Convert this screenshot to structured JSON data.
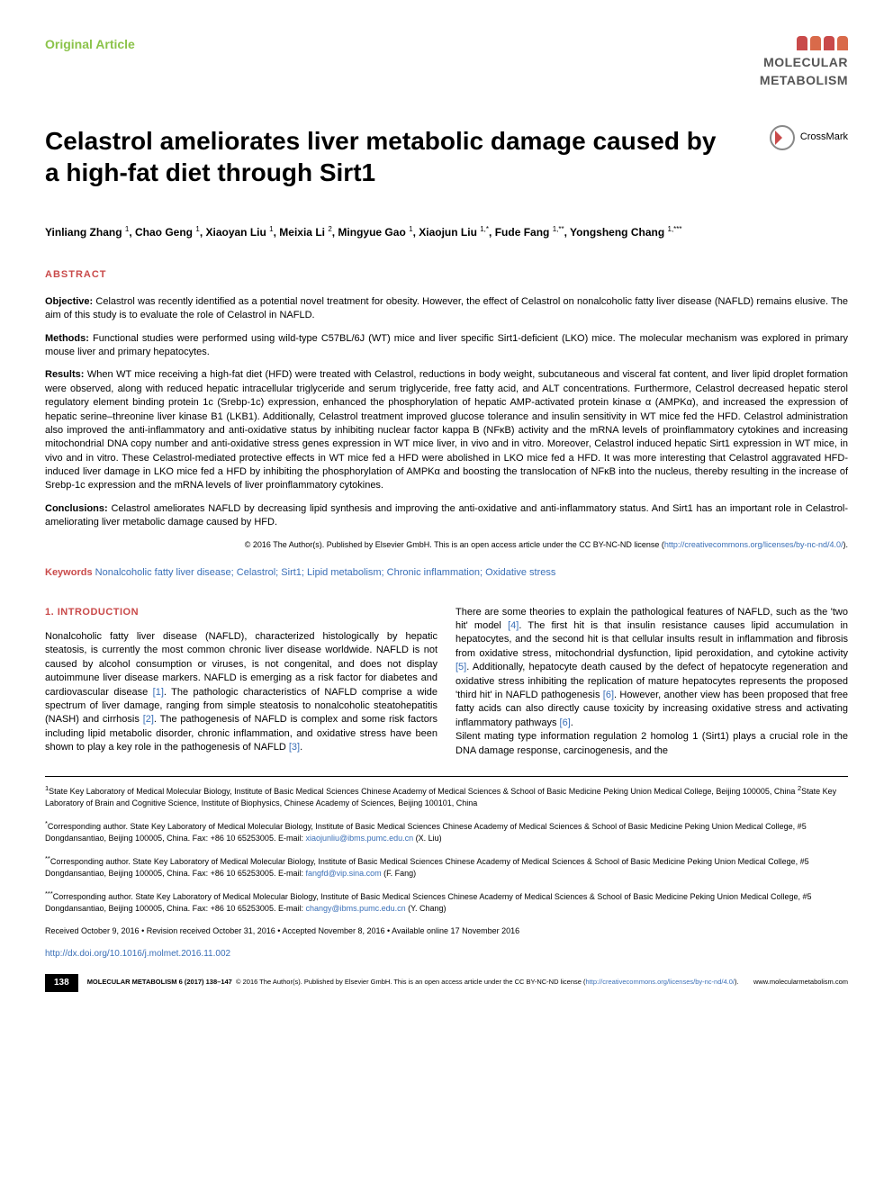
{
  "header": {
    "article_type": "Original Article",
    "journal_line1": "MOLECULAR",
    "journal_line2": "METABOLISM",
    "logo_colors": [
      "#c94a4a",
      "#d96a4a",
      "#c94a4a",
      "#d96a4a"
    ]
  },
  "title": "Celastrol ameliorates liver metabolic damage caused by a high-fat diet through Sirt1",
  "crossmark_label": "CrossMark",
  "authors_html": "Yinliang Zhang <sup>1</sup>, Chao Geng <sup>1</sup>, Xiaoyan Liu <sup>1</sup>, Meixia Li <sup>2</sup>, Mingyue Gao <sup>1</sup>, Xiaojun Liu <sup>1,*</sup>, Fude Fang <sup>1,**</sup>, Yongsheng Chang <sup>1,***</sup>",
  "abstract": {
    "label": "ABSTRACT",
    "objective_label": "Objective:",
    "objective": "Celastrol was recently identified as a potential novel treatment for obesity. However, the effect of Celastrol on nonalcoholic fatty liver disease (NAFLD) remains elusive. The aim of this study is to evaluate the role of Celastrol in NAFLD.",
    "methods_label": "Methods:",
    "methods": "Functional studies were performed using wild-type C57BL/6J (WT) mice and liver specific Sirt1-deficient (LKO) mice. The molecular mechanism was explored in primary mouse liver and primary hepatocytes.",
    "results_label": "Results:",
    "results": "When WT mice receiving a high-fat diet (HFD) were treated with Celastrol, reductions in body weight, subcutaneous and visceral fat content, and liver lipid droplet formation were observed, along with reduced hepatic intracellular triglyceride and serum triglyceride, free fatty acid, and ALT concentrations. Furthermore, Celastrol decreased hepatic sterol regulatory element binding protein 1c (Srebp-1c) expression, enhanced the phosphorylation of hepatic AMP-activated protein kinase α (AMPKα), and increased the expression of hepatic serine–threonine liver kinase B1 (LKB1). Additionally, Celastrol treatment improved glucose tolerance and insulin sensitivity in WT mice fed the HFD. Celastrol administration also improved the anti-inflammatory and anti-oxidative status by inhibiting nuclear factor kappa B (NFκB) activity and the mRNA levels of proinflammatory cytokines and increasing mitochondrial DNA copy number and anti-oxidative stress genes expression in WT mice liver, in vivo and in vitro. Moreover, Celastrol induced hepatic Sirt1 expression in WT mice, in vivo and in vitro. These Celastrol-mediated protective effects in WT mice fed a HFD were abolished in LKO mice fed a HFD. It was more interesting that Celastrol aggravated HFD-induced liver damage in LKO mice fed a HFD by inhibiting the phosphorylation of AMPKα and boosting the translocation of NFκB into the nucleus, thereby resulting in the increase of Srebp-1c expression and the mRNA levels of liver proinflammatory cytokines.",
    "conclusions_label": "Conclusions:",
    "conclusions": "Celastrol ameliorates NAFLD by decreasing lipid synthesis and improving the anti-oxidative and anti-inflammatory status. And Sirt1 has an important role in Celastrol-ameliorating liver metabolic damage caused by HFD.",
    "copyright": "© 2016 The Author(s). Published by Elsevier GmbH. This is an open access article under the CC BY-NC-ND license (",
    "copyright_link": "http://creativecommons.org/licenses/by-nc-nd/4.0/",
    "copyright_close": ")."
  },
  "keywords": {
    "label": "Keywords",
    "text": "Nonalcoholic fatty liver disease; Celastrol; Sirt1; Lipid metabolism; Chronic inflammation; Oxidative stress"
  },
  "intro": {
    "heading": "1.  INTRODUCTION",
    "col1": "Nonalcoholic fatty liver disease (NAFLD), characterized histologically by hepatic steatosis, is currently the most common chronic liver disease worldwide. NAFLD is not caused by alcohol consumption or viruses, is not congenital, and does not display autoimmune liver disease markers. NAFLD is emerging as a risk factor for diabetes and cardiovascular disease <span class=\"ref-link\">[1]</span>. The pathologic characteristics of NAFLD comprise a wide spectrum of liver damage, ranging from simple steatosis to nonalcoholic steatohepatitis (NASH) and cirrhosis <span class=\"ref-link\">[2]</span>. The pathogenesis of NAFLD is complex and some risk factors including lipid metabolic disorder, chronic inflammation, and oxidative stress have been shown to play a key role in the pathogenesis of NAFLD <span class=\"ref-link\">[3]</span>.",
    "col2": "There are some theories to explain the pathological features of NAFLD, such as the 'two hit' model <span class=\"ref-link\">[4]</span>. The first hit is that insulin resistance causes lipid accumulation in hepatocytes, and the second hit is that cellular insults result in inflammation and fibrosis from oxidative stress, mitochondrial dysfunction, lipid peroxidation, and cytokine activity <span class=\"ref-link\">[5]</span>. Additionally, hepatocyte death caused by the defect of hepatocyte regeneration and oxidative stress inhibiting the replication of mature hepatocytes represents the proposed 'third hit' in NAFLD pathogenesis <span class=\"ref-link\">[6]</span>. However, another view has been proposed that free fatty acids can also directly cause toxicity by increasing oxidative stress and activating inflammatory pathways <span class=\"ref-link\">[6]</span>.<br>Silent mating type information regulation 2 homolog 1 (Sirt1) plays a crucial role in the DNA damage response, carcinogenesis, and the"
  },
  "affiliations": "<sup>1</sup>State Key Laboratory of Medical Molecular Biology, Institute of Basic Medical Sciences Chinese Academy of Medical Sciences & School of Basic Medicine Peking Union Medical College, Beijing 100005, China <sup>2</sup>State Key Laboratory of Brain and Cognitive Science, Institute of Biophysics, Chinese Academy of Sciences, Beijing 100101, China",
  "corresponding": [
    {
      "marker": "*",
      "text": "Corresponding author. State Key Laboratory of Medical Molecular Biology, Institute of Basic Medical Sciences Chinese Academy of Medical Sciences & School of Basic Medicine Peking Union Medical College, #5 Dongdansantiao, Beijing 100005, China. Fax: +86 10 65253005. E-mail: ",
      "email": "xiaojunliu@ibms.pumc.edu.cn",
      "name": "(X. Liu)"
    },
    {
      "marker": "**",
      "text": "Corresponding author. State Key Laboratory of Medical Molecular Biology, Institute of Basic Medical Sciences Chinese Academy of Medical Sciences & School of Basic Medicine Peking Union Medical College, #5 Dongdansantiao, Beijing 100005, China. Fax: +86 10 65253005. E-mail: ",
      "email": "fangfd@vip.sina.com",
      "name": "(F. Fang)"
    },
    {
      "marker": "***",
      "text": "Corresponding author. State Key Laboratory of Medical Molecular Biology, Institute of Basic Medical Sciences Chinese Academy of Medical Sciences & School of Basic Medicine Peking Union Medical College, #5 Dongdansantiao, Beijing 100005, China. Fax: +86 10 65253005. E-mail: ",
      "email": "changy@ibms.pumc.edu.cn",
      "name": "(Y. Chang)"
    }
  ],
  "dates": "Received October 9, 2016 • Revision received October 31, 2016 • Accepted November 8, 2016 • Available online 17 November 2016",
  "doi": "http://dx.doi.org/10.1016/j.molmet.2016.11.002",
  "footer": {
    "page": "138",
    "citation": "MOLECULAR METABOLISM 6 (2017) 138–147",
    "copyright": "© 2016 The Author(s). Published by Elsevier GmbH. This is an open access article under the CC BY-NC-ND license (",
    "cc_link": "http://creativecommons.org/licenses/by-nc-nd/4.0/",
    "cc_close": ").",
    "site": "www.molecularmetabolism.com"
  },
  "colors": {
    "green": "#8bc34a",
    "red": "#c94a4a",
    "blue": "#3a6fb7"
  }
}
